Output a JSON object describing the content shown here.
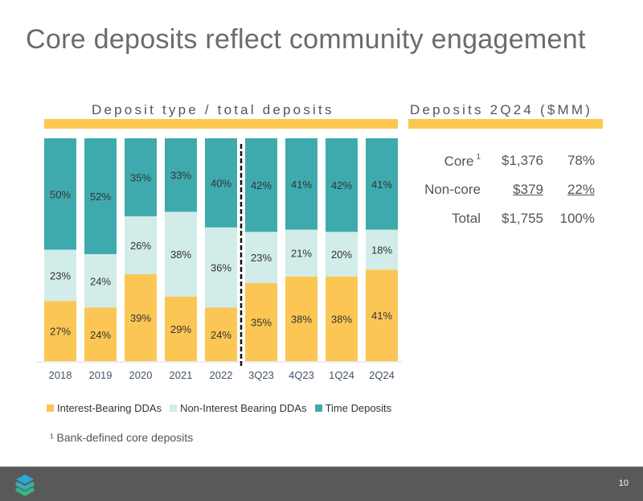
{
  "title": "Core deposits reflect community engagement",
  "left_header": "Deposit type / total deposits",
  "right_header": "Deposits 2Q24 ($MM)",
  "table": {
    "rows": [
      {
        "label": "Core",
        "sup": "1",
        "amount": "$1,376",
        "pct": "78%"
      },
      {
        "label": "Non-core",
        "sup": "",
        "amount": "$379",
        "pct": "22%"
      },
      {
        "label": "Total",
        "sup": "",
        "amount": "$1,755",
        "pct": "100%"
      }
    ]
  },
  "footnote": "¹ Bank-defined core deposits",
  "page_number": "10",
  "chart_data": {
    "type": "bar",
    "stacked": true,
    "normalized": true,
    "categories": [
      "2018",
      "2019",
      "2020",
      "2021",
      "2022",
      "3Q23",
      "4Q23",
      "1Q24",
      "2Q24"
    ],
    "series": [
      {
        "name": "Interest-Bearing DDAs",
        "color": "#fcc654",
        "values": [
          27,
          24,
          39,
          29,
          24,
          35,
          38,
          38,
          41
        ]
      },
      {
        "name": "Non-Interest Bearing DDAs",
        "color": "#d1ece9",
        "values": [
          23,
          24,
          26,
          38,
          36,
          23,
          21,
          20,
          18
        ]
      },
      {
        "name": "Time Deposits",
        "color": "#3faaad",
        "values": [
          50,
          52,
          35,
          33,
          40,
          42,
          41,
          42,
          41
        ]
      }
    ],
    "divider_after": "2022",
    "legend_position": "bottom",
    "ylim": [
      0,
      100
    ],
    "grid": false
  }
}
